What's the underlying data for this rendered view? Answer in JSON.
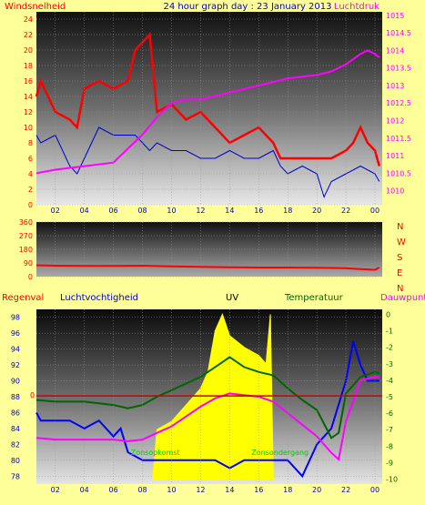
{
  "colors": {
    "background": "#FFFF99",
    "wind": "#FF0000",
    "gust": "#0000CC",
    "pressure": "#FF00FF",
    "direction": "#FF0000",
    "humidity": "#0000FF",
    "temperature": "#006600",
    "dewpoint": "#FF00FF",
    "rain": "#CC0000",
    "uv": "#FFFF00",
    "title": "#0000CC"
  },
  "chart_data": [
    {
      "type": "line",
      "title": "24 hour graph day : 23 January 2013",
      "left_label": "Windsnelheid",
      "right_label": "Luchtdruk",
      "x_ticks": [
        "02",
        "04",
        "06",
        "08",
        "10",
        "12",
        "14",
        "16",
        "18",
        "20",
        "22",
        "00"
      ],
      "left_ticks": [
        "0",
        "2",
        "4",
        "6",
        "8",
        "10",
        "12",
        "14",
        "16",
        "18",
        "20",
        "22",
        "24"
      ],
      "right_ticks": [
        "1010",
        "1010.5",
        "1011",
        "1011.5",
        "1012",
        "1012.5",
        "1013",
        "1013.5",
        "1014",
        "1014.5",
        "1015"
      ],
      "ylim_left": [
        0,
        24
      ],
      "ylim_right": [
        1009.6,
        1015.1
      ],
      "xlim": [
        0.7,
        24.5
      ],
      "series": [
        {
          "key": "wind",
          "x": [
            0.7,
            1,
            2,
            3,
            3.5,
            4,
            5,
            6,
            7,
            7.5,
            8,
            8.5,
            9,
            10,
            11,
            12,
            13,
            14,
            15,
            16,
            17,
            17.5,
            18,
            19,
            20,
            21,
            22,
            22.5,
            23,
            23.5,
            24,
            24.3
          ],
          "y": [
            14,
            16,
            12,
            11,
            10,
            15,
            16,
            15,
            16,
            20,
            21,
            22,
            12,
            13,
            11,
            12,
            10,
            8,
            9,
            10,
            8,
            6,
            6,
            6,
            6,
            6,
            7,
            8,
            10,
            8,
            7,
            5
          ]
        },
        {
          "key": "gust",
          "x": [
            0.7,
            1,
            2,
            3,
            3.5,
            4,
            5,
            6,
            7,
            7.5,
            8,
            8.5,
            9,
            10,
            11,
            12,
            13,
            14,
            15,
            16,
            17,
            17.5,
            18,
            19,
            20,
            20.5,
            21,
            22,
            23,
            24,
            24.3
          ],
          "y": [
            9,
            8,
            9,
            5,
            4,
            6,
            10,
            9,
            9,
            9,
            8,
            7,
            8,
            7,
            7,
            6,
            6,
            7,
            6,
            6,
            7,
            5,
            4,
            5,
            4,
            1,
            3,
            4,
            5,
            4,
            3
          ]
        },
        {
          "key": "pressure",
          "x": [
            0.7,
            2,
            4,
            6,
            7,
            8,
            9,
            10,
            11,
            12,
            13,
            14,
            15,
            16,
            17,
            18,
            19,
            20,
            21,
            22,
            23,
            23.5,
            24,
            24.3
          ],
          "y": [
            1010.5,
            1010.6,
            1010.7,
            1010.8,
            1011.2,
            1011.6,
            1012.1,
            1012.5,
            1012.6,
            1012.6,
            1012.7,
            1012.8,
            1012.9,
            1013.0,
            1013.1,
            1013.2,
            1013.25,
            1013.3,
            1013.4,
            1013.6,
            1013.9,
            1014.0,
            1013.9,
            1013.8
          ]
        }
      ]
    },
    {
      "type": "line",
      "right_labels": [
        "N",
        "W",
        "S",
        "E",
        "N"
      ],
      "left_ticks": [
        "0",
        "90",
        "180",
        "270",
        "360"
      ],
      "ylim": [
        0,
        360
      ],
      "series": [
        {
          "key": "direction",
          "x": [
            0.7,
            2,
            4,
            6,
            8,
            10,
            12,
            14,
            16,
            18,
            20,
            22,
            23,
            24,
            24.3
          ],
          "y": [
            75,
            72,
            70,
            70,
            72,
            68,
            64,
            62,
            60,
            60,
            58,
            55,
            50,
            45,
            60
          ]
        }
      ]
    },
    {
      "type": "line",
      "legend": [
        "Regenval",
        "Luchtvochtigheid",
        "UV",
        "Temperatuur",
        "Dauwpunt"
      ],
      "left_ticks": [
        "78",
        "80",
        "82",
        "84",
        "86",
        "88",
        "90",
        "92",
        "94",
        "96",
        "98"
      ],
      "right_ticks": [
        "-10",
        "-9",
        "-8",
        "-7",
        "-6",
        "-5",
        "-4",
        "-3",
        "-2",
        "-1",
        "0"
      ],
      "rain_ticks": [
        "0"
      ],
      "ylim_left": [
        77,
        99
      ],
      "ylim_right": [
        -10.3,
        0.3
      ],
      "annotations": [
        "Zonsopkomst",
        "Zonsondergang"
      ],
      "sunrise_hour": 8.7,
      "sunset_hour": 17.0,
      "series": [
        {
          "key": "uv",
          "x": [
            8.7,
            9,
            10,
            11,
            12,
            12.5,
            13,
            13.5,
            14,
            15,
            16,
            16.5,
            16.8,
            17
          ],
          "y": [
            -10,
            -7,
            -6.5,
            -5.5,
            -4.5,
            -3.5,
            -1,
            0,
            -1.3,
            -2,
            -2.5,
            -3,
            0,
            -10
          ]
        },
        {
          "key": "humidity",
          "x": [
            0.7,
            1,
            2,
            3,
            4,
            5,
            6,
            6.5,
            7,
            8,
            9,
            10,
            11,
            12,
            13,
            14,
            15,
            16,
            17,
            18,
            19,
            20,
            21,
            22,
            22.5,
            23,
            23.5,
            24,
            24.3
          ],
          "y": [
            86,
            85,
            85,
            85,
            84,
            85,
            83,
            84,
            81,
            80,
            80,
            80,
            80,
            80,
            80,
            79,
            80,
            80,
            80,
            80,
            78,
            82,
            84,
            90,
            95,
            92,
            90,
            90,
            90
          ]
        },
        {
          "key": "temperature",
          "x": [
            0.7,
            2,
            4,
            6,
            7,
            8,
            9,
            10,
            11,
            12,
            13,
            14,
            15,
            16,
            17,
            18,
            19,
            20,
            21,
            21.5,
            22,
            23,
            24,
            24.3
          ],
          "y": [
            -5.2,
            -5.3,
            -5.3,
            -5.5,
            -5.7,
            -5.5,
            -5.0,
            -4.6,
            -4.2,
            -3.8,
            -3.2,
            -2.6,
            -3.2,
            -3.5,
            -3.7,
            -4.5,
            -5.2,
            -5.8,
            -7.5,
            -7.2,
            -4.8,
            -3.8,
            -3.5,
            -3.6
          ]
        },
        {
          "key": "dewpoint",
          "x": [
            0.7,
            2,
            4,
            6,
            7,
            8,
            9,
            10,
            11,
            12,
            13,
            14,
            15,
            16,
            17,
            18,
            19,
            20,
            21,
            21.5,
            22,
            23,
            24,
            24.3
          ],
          "y": [
            -7.5,
            -7.6,
            -7.6,
            -7.6,
            -7.7,
            -7.6,
            -7.2,
            -6.8,
            -6.2,
            -5.6,
            -5.1,
            -4.8,
            -4.9,
            -5.0,
            -5.3,
            -6.0,
            -6.7,
            -7.4,
            -8.4,
            -8.8,
            -6.5,
            -4.0,
            -3.8,
            -3.8
          ]
        },
        {
          "key": "rain",
          "x": [
            0.7,
            24.5
          ],
          "y": [
            -4.95,
            -4.95
          ]
        }
      ]
    }
  ]
}
